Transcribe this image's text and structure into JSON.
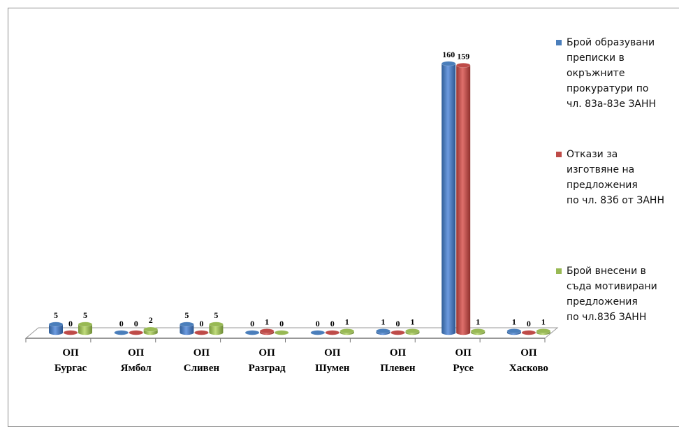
{
  "chart_data": {
    "type": "bar",
    "categories": [
      [
        "ОП",
        "Бургас"
      ],
      [
        "ОП",
        "Ямбол"
      ],
      [
        "ОП",
        "Сливен"
      ],
      [
        "ОП",
        "Разград"
      ],
      [
        "ОП",
        "Шумен"
      ],
      [
        "ОП",
        "Плевен"
      ],
      [
        "ОП",
        "Русе"
      ],
      [
        "ОП",
        "Хасково"
      ]
    ],
    "series": [
      {
        "name": "Брой образувани преписки в окръжните прокуратури по чл. 83а-83е ЗАНН",
        "color": "#4a7ebb",
        "values": [
          5,
          0,
          5,
          0,
          0,
          1,
          160,
          1
        ]
      },
      {
        "name": "Откази за изготвяне на предложения по чл. 83б от ЗАНН",
        "color": "#be4b48",
        "values": [
          0,
          0,
          0,
          1,
          0,
          0,
          159,
          0
        ]
      },
      {
        "name": "Брой внесени в съда мотивирани предложения по чл.83б ЗАНН",
        "color": "#98b954",
        "values": [
          5,
          2,
          5,
          0,
          1,
          1,
          1,
          1
        ]
      }
    ],
    "ylim": [
      0,
      160
    ],
    "grid": false,
    "legend": "right"
  },
  "legend": {
    "items": [
      {
        "label": "Брой образувани\nпреписки в\nокръжните\nпрокуратури по\nчл. 83а-83е ЗАНН",
        "color": "#4a7ebb"
      },
      {
        "label": "Откази за\nизготвяне на\nпредложения\nпо чл. 83б от ЗАНН",
        "color": "#be4b48"
      },
      {
        "label": "Брой внесени в\nсъда мотивирани\nпредложения\nпо чл.83б ЗАНН",
        "color": "#98b954"
      }
    ]
  }
}
